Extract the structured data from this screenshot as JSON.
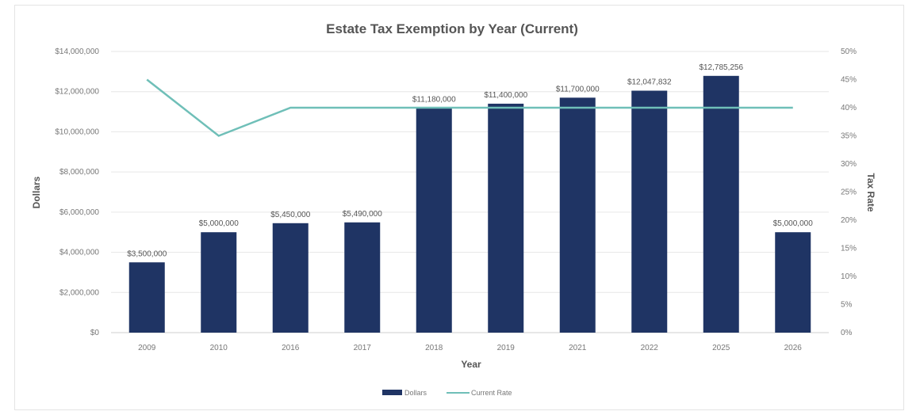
{
  "chart_data": {
    "type": "bar",
    "title": "Estate Tax Exemption by Year (Current)",
    "xlabel": "Year",
    "ylabel": "Dollars",
    "y2label": "Tax Rate",
    "ylim": [
      0,
      14000000
    ],
    "y2lim": [
      0,
      50
    ],
    "yticks": [
      "$0",
      "$2,000,000",
      "$4,000,000",
      "$6,000,000",
      "$8,000,000",
      "$10,000,000",
      "$12,000,000",
      "$14,000,000"
    ],
    "y2ticks": [
      "0%",
      "5%",
      "10%",
      "15%",
      "20%",
      "25%",
      "30%",
      "35%",
      "40%",
      "45%",
      "50%"
    ],
    "categories": [
      "2009",
      "2010",
      "2016",
      "2017",
      "2018",
      "2019",
      "2021",
      "2022",
      "2025",
      "2026"
    ],
    "series": [
      {
        "name": "Dollars",
        "type": "bar",
        "color": "#1f3464",
        "values": [
          3500000,
          5000000,
          5450000,
          5490000,
          11180000,
          11400000,
          11700000,
          12047832,
          12785256,
          5000000
        ],
        "labels": [
          "$3,500,000",
          "$5,000,000",
          "$5,450,000",
          "$5,490,000",
          "$11,180,000",
          "$11,400,000",
          "$11,700,000",
          "$12,047,832",
          "$12,785,256",
          "$5,000,000"
        ]
      },
      {
        "name": "Current Rate",
        "type": "line",
        "color": "#6fbfb8",
        "axis": "right",
        "values": [
          45,
          35,
          40,
          40,
          40,
          40,
          40,
          40,
          40,
          40
        ]
      }
    ],
    "grid": true,
    "legend": "bottom"
  }
}
